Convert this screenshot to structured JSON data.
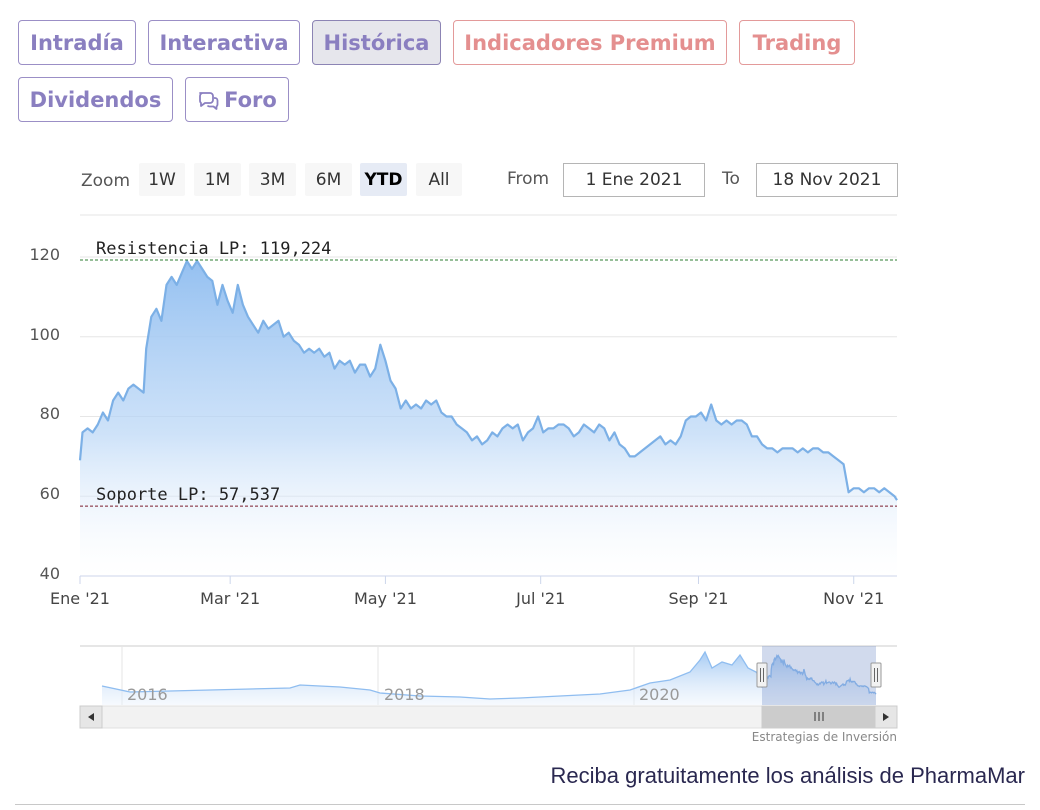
{
  "tabs": [
    {
      "label": "Intradía"
    },
    {
      "label": "Interactiva"
    },
    {
      "label": "Histórica"
    },
    {
      "label": "Indicadores Premium"
    },
    {
      "label": "Trading"
    },
    {
      "label": "Dividendos"
    },
    {
      "label": "Foro"
    }
  ],
  "active_tab": "Histórica",
  "range_selector": {
    "zoom_label": "Zoom",
    "buttons": [
      "1W",
      "1M",
      "3M",
      "6M",
      "YTD",
      "All"
    ],
    "selected": "YTD",
    "from_label": "From",
    "from_value": "1 Ene 2021",
    "to_label": "To",
    "to_value": "18 Nov 2021"
  },
  "navigator": {
    "year_labels": [
      "2016",
      "2018",
      "2020"
    ]
  },
  "credits": "Estrategias de Inversión",
  "cta_text": "Reciba gratuitamente los análisis de PharmaMar",
  "colors": {
    "line": "#7cb0e6",
    "area_top": "#8fbdf0",
    "resistance": "#2e7d32",
    "support": "#7b1e2e",
    "tab_text": "#8a7fc0",
    "premium_text": "#e48f8f"
  },
  "chart_data": {
    "type": "area",
    "title": "",
    "xlabel": "",
    "ylabel": "",
    "ylim": [
      40,
      123
    ],
    "y_ticks": [
      40,
      60,
      80,
      100,
      120
    ],
    "x_ticks": [
      {
        "date": "2021-01-01",
        "label": "Ene '21"
      },
      {
        "date": "2021-03-01",
        "label": "Mar '21"
      },
      {
        "date": "2021-05-01",
        "label": "May '21"
      },
      {
        "date": "2021-07-01",
        "label": "Jul '21"
      },
      {
        "date": "2021-09-01",
        "label": "Sep '21"
      },
      {
        "date": "2021-11-01",
        "label": "Nov '21"
      }
    ],
    "xlim": [
      "2021-01-01",
      "2021-11-18"
    ],
    "grid": true,
    "plot_lines": [
      {
        "label": "Resistencia LP: 119,224",
        "value": 119.224
      },
      {
        "label": "Soporte LP: 57,537",
        "value": 57.537
      }
    ],
    "series": [
      {
        "points": [
          [
            "2021-01-01",
            69
          ],
          [
            "2021-01-02",
            76
          ],
          [
            "2021-01-04",
            77
          ],
          [
            "2021-01-06",
            76
          ],
          [
            "2021-01-08",
            78
          ],
          [
            "2021-01-10",
            81
          ],
          [
            "2021-01-12",
            79
          ],
          [
            "2021-01-14",
            84
          ],
          [
            "2021-01-16",
            86
          ],
          [
            "2021-01-18",
            84
          ],
          [
            "2021-01-20",
            87
          ],
          [
            "2021-01-22",
            88
          ],
          [
            "2021-01-24",
            87
          ],
          [
            "2021-01-26",
            86
          ],
          [
            "2021-01-27",
            97
          ],
          [
            "2021-01-29",
            105
          ],
          [
            "2021-01-31",
            107
          ],
          [
            "2021-02-02",
            104
          ],
          [
            "2021-02-04",
            113
          ],
          [
            "2021-02-06",
            115
          ],
          [
            "2021-02-08",
            113
          ],
          [
            "2021-02-10",
            116
          ],
          [
            "2021-02-12",
            119
          ],
          [
            "2021-02-14",
            117
          ],
          [
            "2021-02-16",
            119
          ],
          [
            "2021-02-18",
            117
          ],
          [
            "2021-02-20",
            115
          ],
          [
            "2021-02-22",
            114
          ],
          [
            "2021-02-24",
            108
          ],
          [
            "2021-02-26",
            113
          ],
          [
            "2021-02-28",
            109
          ],
          [
            "2021-03-02",
            106
          ],
          [
            "2021-03-04",
            113
          ],
          [
            "2021-03-06",
            108
          ],
          [
            "2021-03-08",
            105
          ],
          [
            "2021-03-10",
            103
          ],
          [
            "2021-03-12",
            101
          ],
          [
            "2021-03-14",
            104
          ],
          [
            "2021-03-16",
            102
          ],
          [
            "2021-03-18",
            103
          ],
          [
            "2021-03-20",
            104
          ],
          [
            "2021-03-22",
            100
          ],
          [
            "2021-03-24",
            101
          ],
          [
            "2021-03-26",
            99
          ],
          [
            "2021-03-28",
            98
          ],
          [
            "2021-03-30",
            96
          ],
          [
            "2021-04-01",
            97
          ],
          [
            "2021-04-03",
            96
          ],
          [
            "2021-04-05",
            97
          ],
          [
            "2021-04-07",
            95
          ],
          [
            "2021-04-09",
            96
          ],
          [
            "2021-04-11",
            92
          ],
          [
            "2021-04-13",
            94
          ],
          [
            "2021-04-15",
            93
          ],
          [
            "2021-04-17",
            94
          ],
          [
            "2021-04-19",
            91
          ],
          [
            "2021-04-21",
            93
          ],
          [
            "2021-04-23",
            93
          ],
          [
            "2021-04-25",
            90
          ],
          [
            "2021-04-27",
            92
          ],
          [
            "2021-04-29",
            98
          ],
          [
            "2021-05-01",
            94
          ],
          [
            "2021-05-03",
            89
          ],
          [
            "2021-05-05",
            87
          ],
          [
            "2021-05-07",
            82
          ],
          [
            "2021-05-09",
            84
          ],
          [
            "2021-05-11",
            82
          ],
          [
            "2021-05-13",
            83
          ],
          [
            "2021-05-15",
            82
          ],
          [
            "2021-05-17",
            84
          ],
          [
            "2021-05-19",
            83
          ],
          [
            "2021-05-21",
            84
          ],
          [
            "2021-05-23",
            81
          ],
          [
            "2021-05-25",
            80
          ],
          [
            "2021-05-27",
            80
          ],
          [
            "2021-05-29",
            78
          ],
          [
            "2021-05-31",
            77
          ],
          [
            "2021-06-02",
            76
          ],
          [
            "2021-06-04",
            74
          ],
          [
            "2021-06-06",
            75
          ],
          [
            "2021-06-08",
            73
          ],
          [
            "2021-06-10",
            74
          ],
          [
            "2021-06-12",
            76
          ],
          [
            "2021-06-14",
            75
          ],
          [
            "2021-06-16",
            77
          ],
          [
            "2021-06-18",
            78
          ],
          [
            "2021-06-20",
            77
          ],
          [
            "2021-06-22",
            78
          ],
          [
            "2021-06-24",
            74
          ],
          [
            "2021-06-26",
            76
          ],
          [
            "2021-06-28",
            77
          ],
          [
            "2021-06-30",
            80
          ],
          [
            "2021-07-02",
            76
          ],
          [
            "2021-07-04",
            77
          ],
          [
            "2021-07-06",
            77
          ],
          [
            "2021-07-08",
            78
          ],
          [
            "2021-07-10",
            78
          ],
          [
            "2021-07-12",
            77
          ],
          [
            "2021-07-14",
            75
          ],
          [
            "2021-07-16",
            76
          ],
          [
            "2021-07-18",
            78
          ],
          [
            "2021-07-20",
            77
          ],
          [
            "2021-07-22",
            76
          ],
          [
            "2021-07-24",
            78
          ],
          [
            "2021-07-26",
            77
          ],
          [
            "2021-07-28",
            74
          ],
          [
            "2021-07-30",
            76
          ],
          [
            "2021-08-01",
            73
          ],
          [
            "2021-08-03",
            72
          ],
          [
            "2021-08-05",
            70
          ],
          [
            "2021-08-07",
            70
          ],
          [
            "2021-08-09",
            71
          ],
          [
            "2021-08-11",
            72
          ],
          [
            "2021-08-13",
            73
          ],
          [
            "2021-08-15",
            74
          ],
          [
            "2021-08-17",
            75
          ],
          [
            "2021-08-19",
            73
          ],
          [
            "2021-08-21",
            74
          ],
          [
            "2021-08-23",
            73
          ],
          [
            "2021-08-25",
            75
          ],
          [
            "2021-08-27",
            79
          ],
          [
            "2021-08-29",
            80
          ],
          [
            "2021-08-31",
            80
          ],
          [
            "2021-09-02",
            81
          ],
          [
            "2021-09-04",
            79
          ],
          [
            "2021-09-06",
            83
          ],
          [
            "2021-09-08",
            79
          ],
          [
            "2021-09-10",
            78
          ],
          [
            "2021-09-12",
            79
          ],
          [
            "2021-09-14",
            78
          ],
          [
            "2021-09-16",
            79
          ],
          [
            "2021-09-18",
            79
          ],
          [
            "2021-09-20",
            78
          ],
          [
            "2021-09-22",
            75
          ],
          [
            "2021-09-24",
            75
          ],
          [
            "2021-09-26",
            73
          ],
          [
            "2021-09-28",
            72
          ],
          [
            "2021-09-30",
            72
          ],
          [
            "2021-10-02",
            71
          ],
          [
            "2021-10-04",
            72
          ],
          [
            "2021-10-06",
            72
          ],
          [
            "2021-10-08",
            72
          ],
          [
            "2021-10-10",
            71
          ],
          [
            "2021-10-12",
            72
          ],
          [
            "2021-10-14",
            71
          ],
          [
            "2021-10-16",
            72
          ],
          [
            "2021-10-18",
            72
          ],
          [
            "2021-10-20",
            71
          ],
          [
            "2021-10-22",
            71
          ],
          [
            "2021-10-24",
            70
          ],
          [
            "2021-10-26",
            69
          ],
          [
            "2021-10-28",
            68
          ],
          [
            "2021-10-30",
            61
          ],
          [
            "2021-11-01",
            62
          ],
          [
            "2021-11-03",
            62
          ],
          [
            "2021-11-05",
            61
          ],
          [
            "2021-11-07",
            62
          ],
          [
            "2021-11-09",
            62
          ],
          [
            "2021-11-11",
            61
          ],
          [
            "2021-11-13",
            62
          ],
          [
            "2021-11-15",
            61
          ],
          [
            "2021-11-17",
            60
          ],
          [
            "2021-11-18",
            59
          ]
        ]
      }
    ]
  }
}
